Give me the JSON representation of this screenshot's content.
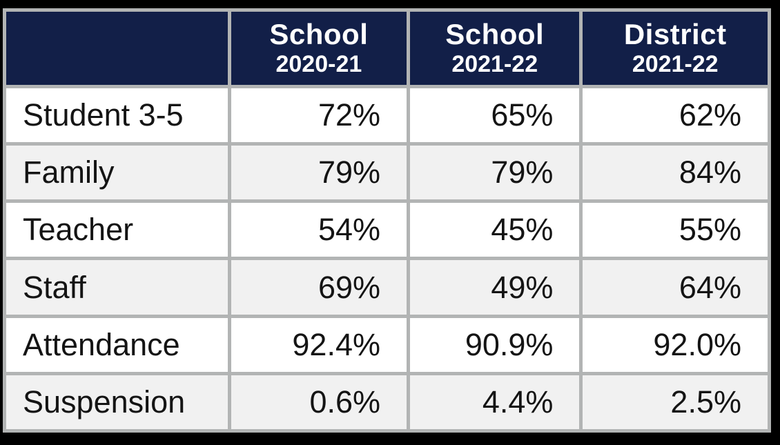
{
  "colors": {
    "header_bg": "#121F48",
    "header_text": "#FFFFFF",
    "grid_line": "#B2B4B4",
    "row_white": "#FFFFFF",
    "row_stripe": "#F1F1F1",
    "body_text": "#141414",
    "frame": "#000000"
  },
  "table": {
    "header": [
      {
        "title": "School",
        "subtitle": "2020-21"
      },
      {
        "title": "School",
        "subtitle": "2021-22"
      },
      {
        "title": "District",
        "subtitle": "2021-22"
      }
    ],
    "rows": [
      {
        "label": "Student 3-5",
        "values": [
          "72%",
          "65%",
          "62%"
        ]
      },
      {
        "label": "Family",
        "values": [
          "79%",
          "79%",
          "84%"
        ]
      },
      {
        "label": "Teacher",
        "values": [
          "54%",
          "45%",
          "55%"
        ]
      },
      {
        "label": "Staff",
        "values": [
          "69%",
          "49%",
          "64%"
        ]
      },
      {
        "label": "Attendance",
        "values": [
          "92.4%",
          "90.9%",
          "92.0%"
        ]
      },
      {
        "label": "Suspension",
        "values": [
          "0.6%",
          "4.4%",
          "2.5%"
        ]
      }
    ]
  },
  "chart_data": {
    "type": "table",
    "columns": [
      "",
      "School 2020-21",
      "School 2021-22",
      "District 2021-22"
    ],
    "rows": [
      [
        "Student 3-5",
        "72%",
        "65%",
        "62%"
      ],
      [
        "Family",
        "79%",
        "79%",
        "84%"
      ],
      [
        "Teacher",
        "54%",
        "45%",
        "55%"
      ],
      [
        "Staff",
        "69%",
        "49%",
        "64%"
      ],
      [
        "Attendance",
        "92.4%",
        "90.9%",
        "92.0%"
      ],
      [
        "Suspension",
        "0.6%",
        "4.4%",
        "2.5%"
      ]
    ]
  }
}
